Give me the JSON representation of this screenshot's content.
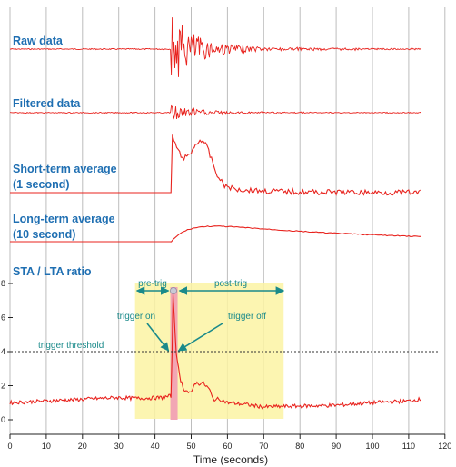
{
  "chart_data": {
    "type": "line",
    "x_axis": {
      "label": "Time (seconds)",
      "ticks": [
        "0",
        "10",
        "20",
        "30",
        "40",
        "50",
        "60",
        "70",
        "80",
        "90",
        "100",
        "110",
        "120"
      ],
      "range": [
        0,
        120
      ]
    },
    "y_axis_ratio": {
      "ticks": [
        "0",
        "2",
        "4",
        "6",
        "8"
      ],
      "range": [
        0,
        8
      ]
    },
    "grid": "vertical",
    "traces": [
      {
        "id": "raw",
        "label": "Raw data"
      },
      {
        "id": "filtered",
        "label": "Filtered data"
      },
      {
        "id": "sta",
        "label_line1": "Short-term average",
        "label_line2": "(1 second)"
      },
      {
        "id": "lta",
        "label_line1": "Long-term average",
        "label_line2": "(10 second)"
      },
      {
        "id": "ratio",
        "label": "STA / LTA ratio"
      }
    ],
    "event_onset_s": 44.5,
    "sta_lta_series": {
      "x": [
        0,
        30,
        35,
        42,
        44.5,
        45,
        45.5,
        46,
        47,
        48,
        50,
        51,
        52,
        53,
        55,
        56,
        58,
        60,
        65,
        70,
        80,
        90,
        100,
        110,
        113
      ],
      "y": [
        1.0,
        1.3,
        1.25,
        1.3,
        1.4,
        7.4,
        5.4,
        3.6,
        2.4,
        1.8,
        1.5,
        2.2,
        2.1,
        2.2,
        1.8,
        1.2,
        1.2,
        1.0,
        0.9,
        0.75,
        0.8,
        0.85,
        1.0,
        1.1,
        1.2
      ]
    },
    "trigger_threshold": {
      "value": 4,
      "label": "trigger threshold"
    },
    "trigger_on": {
      "x": 44.5,
      "label": "trigger on"
    },
    "trigger_off": {
      "x": 46,
      "label": "trigger off"
    },
    "pre_trig": {
      "from": 34.5,
      "to": 44.5,
      "label": "pre-trig"
    },
    "post_trig": {
      "from": 46,
      "to": 75.5,
      "label": "post-trig"
    }
  },
  "colors": {
    "trace": "#e8231e",
    "label": "#1f6fb2",
    "annotation": "#1a8a8a",
    "window_fill": "#fbf3a3",
    "trigger_band": "#f2a6b4",
    "grid": "#bdbdbd"
  }
}
